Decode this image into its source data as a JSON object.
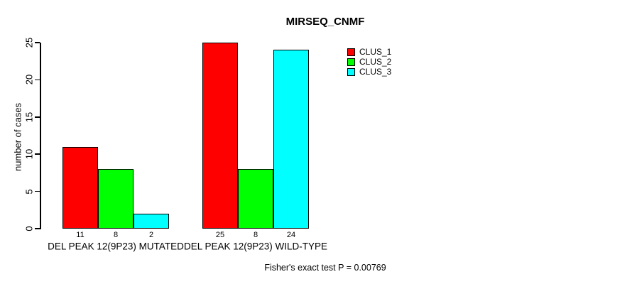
{
  "chart_data": {
    "type": "bar",
    "title": "MIRSEQ_CNMF",
    "ylabel": "number of cases",
    "annotation": "Fisher's exact test P = 0.00769",
    "categories": [
      "DEL PEAK 12(9P23) MUTATED",
      "DEL PEAK 12(9P23) WILD-TYPE"
    ],
    "series": [
      {
        "name": "CLUS_1",
        "color": "#ff0000",
        "values": [
          11,
          25
        ]
      },
      {
        "name": "CLUS_2",
        "color": "#00ff00",
        "values": [
          8,
          8
        ]
      },
      {
        "name": "CLUS_3",
        "color": "#00ffff",
        "values": [
          2,
          24
        ]
      }
    ],
    "bar_value_labels": [
      [
        11,
        8,
        2
      ],
      [
        25,
        8,
        24
      ]
    ],
    "yticks": [
      0,
      5,
      10,
      15,
      20,
      25
    ],
    "ylim": [
      0,
      25
    ],
    "grid": false,
    "legend_position": "top-right",
    "colors": {
      "axis": "#000000",
      "text": "#000000",
      "background": "#ffffff"
    }
  }
}
